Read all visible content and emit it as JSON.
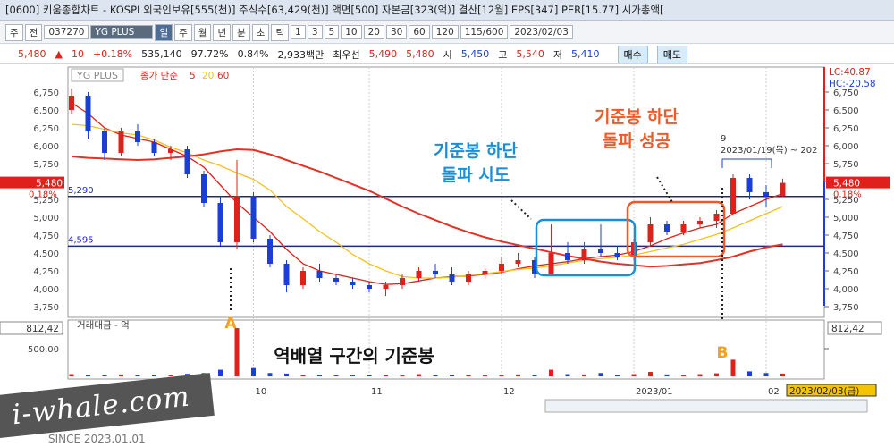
{
  "window": {
    "title": "[0600] 키움종합차트 - KOSPI 외국인보유[555(천)] 주식수[63,429(천)] 액면[500] 자본금[323(억)] 결산[12월] EPS[347] PER[15.77] 시가총액["
  },
  "toolbar": {
    "items": [
      "주",
      "전",
      "037270",
      "YG PLUS",
      "일",
      "주",
      "월",
      "년",
      "분",
      "초",
      "틱",
      "1",
      "3",
      "5",
      "10",
      "20",
      "30",
      "60",
      "120",
      "115/600",
      "2023/02/03"
    ],
    "active": 4
  },
  "quote": {
    "items": [
      {
        "text": "5,480",
        "color": "#e0201b"
      },
      {
        "text": "▲",
        "color": "#e0201b"
      },
      {
        "text": "10",
        "color": "#e0201b"
      },
      {
        "text": "+0.18%",
        "color": "#e0201b"
      },
      {
        "text": "535,140",
        "color": "#222"
      },
      {
        "text": "97.72%",
        "color": "#222"
      },
      {
        "text": "0.84%",
        "color": "#222"
      },
      {
        "text": "2,933백만",
        "color": "#222"
      },
      {
        "text": "최우선",
        "color": "#222"
      },
      {
        "text": "5,490",
        "color": "#e0201b"
      },
      {
        "text": "5,480",
        "color": "#e0201b"
      },
      {
        "text": "시",
        "color": "#222"
      },
      {
        "text": "5,450",
        "color": "#1a3fd6"
      },
      {
        "text": "고",
        "color": "#222"
      },
      {
        "text": "5,540",
        "color": "#e0201b"
      },
      {
        "text": "저",
        "color": "#222"
      },
      {
        "text": "5,410",
        "color": "#1a3fd6"
      }
    ],
    "buttons": [
      "매수",
      "매도"
    ]
  },
  "chart_data": {
    "type": "candlestick",
    "title": "YG PLUS",
    "ma_label": "종가 단순",
    "categories": [
      null,
      null,
      null,
      null,
      null,
      null,
      null,
      null,
      null,
      null,
      null,
      "10",
      null,
      null,
      null,
      null,
      null,
      null,
      "11",
      null,
      null,
      null,
      null,
      null,
      null,
      null,
      "12",
      null,
      null,
      null,
      null,
      null,
      null,
      null,
      "2023/01",
      null,
      null,
      null,
      null,
      null,
      null,
      null,
      "02",
      null
    ],
    "candles": [
      {
        "open": 6500,
        "high": 6800,
        "low": 6450,
        "close": 6700
      },
      {
        "open": 6700,
        "high": 6750,
        "low": 6100,
        "close": 6200
      },
      {
        "open": 6200,
        "high": 6250,
        "low": 5800,
        "close": 5900
      },
      {
        "open": 5900,
        "high": 6250,
        "low": 5850,
        "close": 6200
      },
      {
        "open": 6200,
        "high": 6300,
        "low": 6000,
        "close": 6050
      },
      {
        "open": 6050,
        "high": 6100,
        "low": 5850,
        "close": 5900
      },
      {
        "open": 5900,
        "high": 6000,
        "low": 5800,
        "close": 5950
      },
      {
        "open": 5950,
        "high": 6000,
        "low": 5550,
        "close": 5600
      },
      {
        "open": 5600,
        "high": 5650,
        "low": 5150,
        "close": 5200
      },
      {
        "open": 5200,
        "high": 5300,
        "low": 4600,
        "close": 4650
      },
      {
        "open": 4650,
        "high": 5800,
        "low": 4550,
        "close": 5300
      },
      {
        "open": 5300,
        "high": 5350,
        "low": 4650,
        "close": 4700
      },
      {
        "open": 4700,
        "high": 4750,
        "low": 4300,
        "close": 4350
      },
      {
        "open": 4350,
        "high": 4400,
        "low": 3950,
        "close": 4050
      },
      {
        "open": 4050,
        "high": 4300,
        "low": 4000,
        "close": 4250
      },
      {
        "open": 4250,
        "high": 4350,
        "low": 4100,
        "close": 4150
      },
      {
        "open": 4150,
        "high": 4200,
        "low": 4050,
        "close": 4100
      },
      {
        "open": 4100,
        "high": 4150,
        "low": 4000,
        "close": 4050
      },
      {
        "open": 4050,
        "high": 4100,
        "low": 3950,
        "close": 4000
      },
      {
        "open": 4000,
        "high": 4100,
        "low": 3900,
        "close": 4050
      },
      {
        "open": 4050,
        "high": 4200,
        "low": 4000,
        "close": 4150
      },
      {
        "open": 4150,
        "high": 4300,
        "low": 4100,
        "close": 4250
      },
      {
        "open": 4250,
        "high": 4350,
        "low": 4150,
        "close": 4200
      },
      {
        "open": 4200,
        "high": 4300,
        "low": 4050,
        "close": 4100
      },
      {
        "open": 4100,
        "high": 4250,
        "low": 4050,
        "close": 4200
      },
      {
        "open": 4200,
        "high": 4300,
        "low": 4150,
        "close": 4250
      },
      {
        "open": 4250,
        "high": 4450,
        "low": 4200,
        "close": 4350
      },
      {
        "open": 4350,
        "high": 4500,
        "low": 4300,
        "close": 4400
      },
      {
        "open": 4400,
        "high": 4450,
        "low": 4150,
        "close": 4200
      },
      {
        "open": 4200,
        "high": 4900,
        "low": 4200,
        "close": 4500
      },
      {
        "open": 4500,
        "high": 4650,
        "low": 4350,
        "close": 4400
      },
      {
        "open": 4400,
        "high": 4650,
        "low": 4350,
        "close": 4550
      },
      {
        "open": 4550,
        "high": 4900,
        "low": 4450,
        "close": 4500
      },
      {
        "open": 4500,
        "high": 4600,
        "low": 4400,
        "close": 4450
      },
      {
        "open": 4450,
        "high": 4700,
        "low": 4400,
        "close": 4650
      },
      {
        "open": 4650,
        "high": 5000,
        "low": 4600,
        "close": 4900
      },
      {
        "open": 4900,
        "high": 4950,
        "low": 4750,
        "close": 4800
      },
      {
        "open": 4800,
        "high": 4950,
        "low": 4750,
        "close": 4900
      },
      {
        "open": 4900,
        "high": 5000,
        "low": 4850,
        "close": 4950
      },
      {
        "open": 4950,
        "high": 5100,
        "low": 4850,
        "close": 5050
      },
      {
        "open": 5050,
        "high": 5600,
        "low": 5050,
        "close": 5550
      },
      {
        "open": 5550,
        "high": 5600,
        "low": 5250,
        "close": 5350
      },
      {
        "open": 5350,
        "high": 5450,
        "low": 5150,
        "close": 5300
      },
      {
        "open": 5300,
        "high": 5540,
        "low": 5280,
        "close": 5480
      }
    ],
    "up_color": "#e0201b",
    "down_color": "#1a3fd6",
    "series": [
      {
        "name": "5",
        "color": "#e0201b",
        "values": [
          6600,
          6450,
          6250,
          6150,
          6100,
          6050,
          5950,
          5850,
          5700,
          5450,
          5200,
          5000,
          4800,
          4550,
          4350,
          4250,
          4200,
          4150,
          4100,
          4060,
          4070,
          4110,
          4150,
          4170,
          4180,
          4200,
          4230,
          4280,
          4320,
          4350,
          4380,
          4420,
          4450,
          4470,
          4520,
          4600,
          4700,
          4780,
          4850,
          4900,
          5050,
          5150,
          5250,
          5330
        ]
      },
      {
        "name": "20",
        "color": "#f2c21b",
        "values": [
          6300,
          6280,
          6230,
          6180,
          6150,
          6080,
          5980,
          5900,
          5800,
          5720,
          5620,
          5530,
          5380,
          5150,
          4980,
          4800,
          4650,
          4480,
          4350,
          4250,
          4170,
          4150,
          4150,
          4160,
          4190,
          4210,
          4240,
          4270,
          4290,
          4320,
          4360,
          4400,
          4420,
          4440,
          4470,
          4520,
          4570,
          4620,
          4690,
          4760,
          4850,
          4950,
          5050,
          5150
        ]
      },
      {
        "name": "60",
        "color": "#e53024",
        "values": [
          5850,
          5830,
          5820,
          5810,
          5800,
          5810,
          5830,
          5850,
          5880,
          5920,
          5950,
          5940,
          5880,
          5800,
          5720,
          5640,
          5550,
          5460,
          5370,
          5260,
          5150,
          5050,
          4960,
          4870,
          4790,
          4720,
          4660,
          4610,
          4560,
          4510,
          4460,
          4420,
          4380,
          4350,
          4330,
          4310,
          4320,
          4340,
          4360,
          4400,
          4450,
          4520,
          4580,
          4620
        ]
      }
    ],
    "ylim": [
      3600,
      7100
    ],
    "yticks": [
      {
        "value": 3750,
        "label": "3,750"
      },
      {
        "value": 4000,
        "label": "4,000"
      },
      {
        "value": 4250,
        "label": "4,250"
      },
      {
        "value": 4500,
        "label": "4,500"
      },
      {
        "value": 4750,
        "label": "4,750"
      },
      {
        "value": 5000,
        "label": "5,000"
      },
      {
        "value": 5250,
        "label": "5,250"
      },
      {
        "value": 5500,
        "label": "5,500"
      },
      {
        "value": 5750,
        "label": "5,750"
      },
      {
        "value": 6000,
        "label": "6,000"
      },
      {
        "value": 6250,
        "label": "6,250"
      },
      {
        "value": 6500,
        "label": "6,500"
      },
      {
        "value": 6750,
        "label": "6,750"
      }
    ],
    "levels": [
      {
        "value": 5290,
        "label": "5,290"
      },
      {
        "value": 4595,
        "label": "4,595"
      }
    ],
    "level_color": "#1a1ad6",
    "current": {
      "value": 5480,
      "label": "5,480",
      "change": "0.18%"
    },
    "lc": "LC:40.87",
    "hc": "HC:-20.58",
    "volume": {
      "title": "거래대금 - 억",
      "max_label": "812,42",
      "values": [
        40,
        30,
        25,
        35,
        30,
        20,
        25,
        45,
        60,
        120,
        870,
        150,
        60,
        50,
        25,
        20,
        15,
        15,
        20,
        25,
        30,
        40,
        25,
        20,
        20,
        25,
        30,
        35,
        30,
        120,
        40,
        35,
        60,
        30,
        40,
        80,
        35,
        30,
        40,
        55,
        300,
        90,
        60,
        50
      ],
      "ylim": [
        0,
        1016
      ],
      "yticks": [
        {
          "value": 500,
          "label": "500,00"
        }
      ]
    },
    "date_tag": "2023/02/03(금)"
  },
  "annotations": {
    "attempt": [
      "기준봉 하단",
      "돌파 시도"
    ],
    "success": [
      "기준봉 하단",
      "돌파 성공"
    ],
    "reverse": "역배열 구간의 기준봉",
    "a": "A",
    "b": "B",
    "period_count": "9",
    "period": "2023/01/19(목) ~ 202"
  },
  "watermark": {
    "brand": "i-whale.com",
    "since": "SINCE 2023.01.01"
  }
}
